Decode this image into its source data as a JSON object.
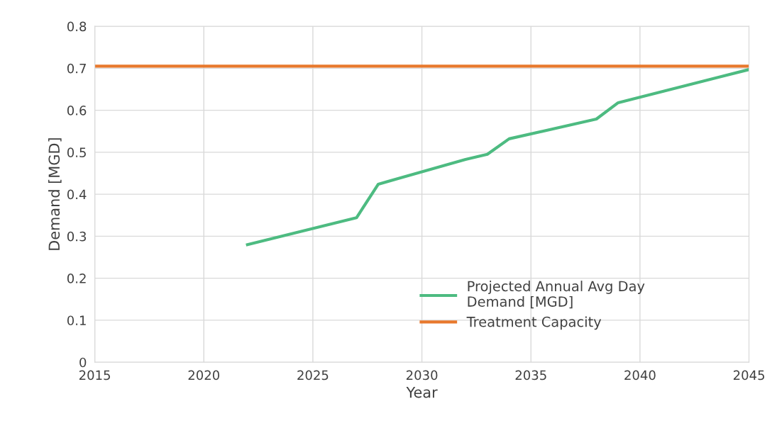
{
  "chart_data": {
    "type": "line",
    "xlabel": "Year",
    "ylabel": "Demand [MGD]",
    "xlim": [
      2015,
      2045
    ],
    "xticks": [
      2015,
      2020,
      2025,
      2030,
      2035,
      2040,
      2045
    ],
    "ylim": [
      0,
      0.8
    ],
    "yticks": [
      0,
      0.1,
      0.2,
      0.3,
      0.4,
      0.5,
      0.6,
      0.7,
      0.8
    ],
    "grid": true,
    "legend": "bottom right",
    "marker": "none",
    "line_style": "solid",
    "series": [
      {
        "name": "Projected Annual Avg Day\nDemand [MGD]",
        "color": "#4dbb81",
        "x": [
          2022,
          2027,
          2028,
          2032,
          2033,
          2034,
          2038,
          2039,
          2045
        ],
        "values": [
          0.28,
          0.344,
          0.424,
          0.483,
          0.495,
          0.532,
          0.579,
          0.618,
          0.697
        ]
      },
      {
        "name": "Treatment Capacity",
        "color": "#e8792d",
        "x": [
          2015,
          2045
        ],
        "values": [
          0.705,
          0.705
        ]
      }
    ]
  }
}
